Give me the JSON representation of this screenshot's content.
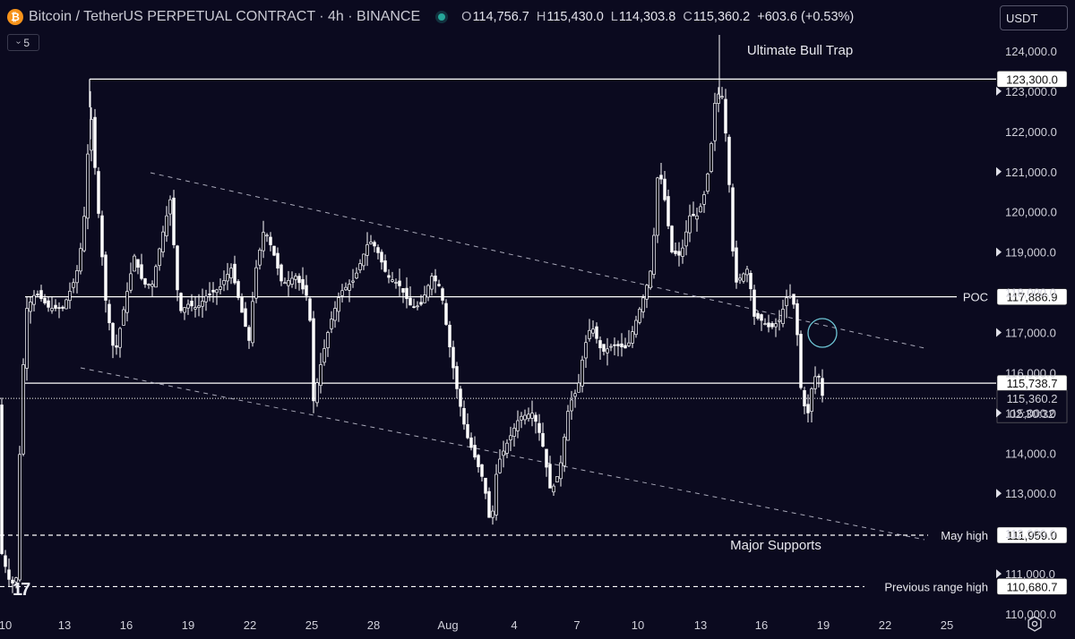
{
  "header": {
    "symbol_icon": "bitcoin-icon",
    "title": "Bitcoin / TetherUS PERPETUAL CONTRACT · 4h · BINANCE",
    "ohlc": {
      "o_label": "O",
      "o": "114,756.7",
      "h_label": "H",
      "h": "115,430.0",
      "l_label": "L",
      "l": "114,303.8",
      "c_label": "C",
      "c": "115,360.2",
      "change": "+603.6 (+0.53%)"
    },
    "currency": "USDT"
  },
  "indicators_toggle": {
    "count": "5",
    "icon": "chevron-down-icon"
  },
  "colors": {
    "background": "#0b0a1f",
    "candles": "#ffffff",
    "live": "#26a69a",
    "circle": "#6ec6d6"
  },
  "chart_data": {
    "type": "candlestick",
    "price_axis": [
      "124,000.0",
      "123,000.0",
      "122,000.0",
      "121,000.0",
      "120,000.0",
      "119,000.0",
      "118,000.0",
      "117,000.0",
      "116,000.0",
      "115,000.0",
      "114,000.0",
      "113,000.0",
      "112,000.0",
      "111,000.0",
      "110,000.0"
    ],
    "date_axis": [
      "10",
      "13",
      "16",
      "19",
      "22",
      "25",
      "28",
      "Aug",
      "4",
      "7",
      "10",
      "13",
      "16",
      "19",
      "22",
      "25"
    ],
    "ylim": [
      109800,
      124600
    ],
    "current_price": "115,360.2",
    "countdown": "02:30:32",
    "levels": [
      {
        "label": "",
        "price": 123300,
        "tag": "123,300.0",
        "style": "solid"
      },
      {
        "label": "POC",
        "price": 117886.9,
        "tag": "117,886.9",
        "style": "solid"
      },
      {
        "label": "",
        "price": 115738.7,
        "tag": "115,738.7",
        "style": "solid"
      },
      {
        "label": "May high",
        "price": 111959.0,
        "tag": "111,959.0",
        "style": "dashed"
      },
      {
        "label": "Previous range high",
        "price": 110680.7,
        "tag": "110,680.7",
        "style": "dashed"
      }
    ],
    "annotations": [
      "Ultimate Bull Trap",
      "Major Supports"
    ]
  }
}
